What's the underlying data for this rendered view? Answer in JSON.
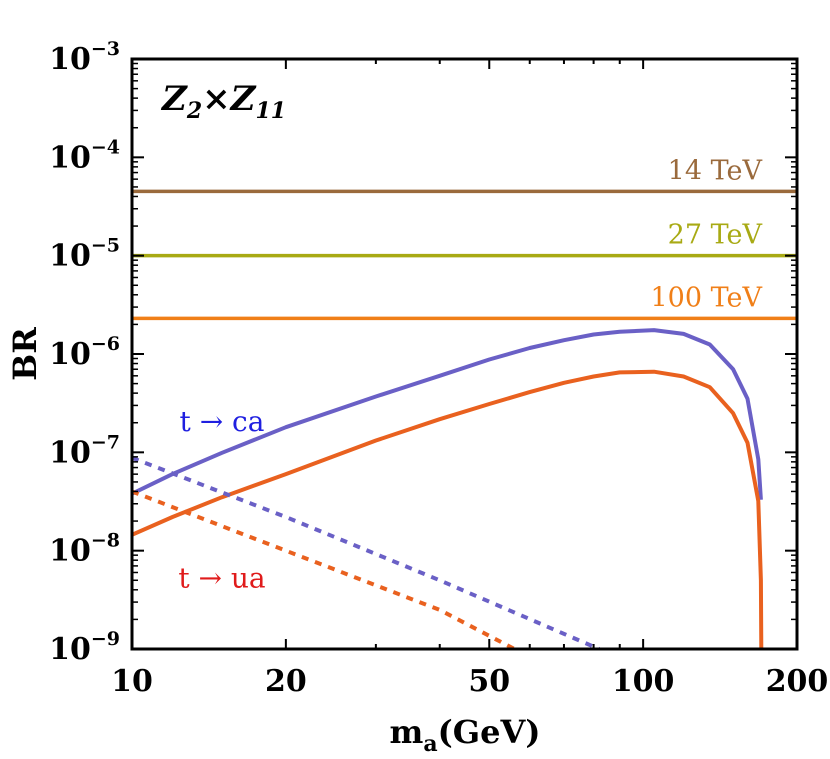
{
  "chart_data": {
    "type": "line",
    "xscale": "log",
    "yscale": "log",
    "xlim": [
      10,
      200
    ],
    "ylim": [
      1e-09,
      0.001
    ],
    "xlabel": "m",
    "xlabel_sub": "a",
    "xlabel_unit": "(GeV)",
    "ylabel": "BR",
    "panel_label": {
      "z2": "Z",
      "z2_sub": "2",
      "times": "×",
      "z11": "Z",
      "z11_sub": "11"
    },
    "x_ticks": [
      {
        "value": 10,
        "label": "10"
      },
      {
        "value": 20,
        "label": "20"
      },
      {
        "value": 50,
        "label": "50"
      },
      {
        "value": 100,
        "label": "100"
      },
      {
        "value": 200,
        "label": "200"
      }
    ],
    "y_ticks": [
      {
        "value": 1e-09,
        "base": "10",
        "exp": "−9"
      },
      {
        "value": 1e-08,
        "base": "10",
        "exp": "−8"
      },
      {
        "value": 1e-07,
        "base": "10",
        "exp": "−7"
      },
      {
        "value": 1e-06,
        "base": "10",
        "exp": "−6"
      },
      {
        "value": 1e-05,
        "base": "10",
        "exp": "−5"
      },
      {
        "value": 0.0001,
        "base": "10",
        "exp": "−4"
      },
      {
        "value": 0.001,
        "base": "10",
        "exp": "−3"
      }
    ],
    "horizontal_lines": [
      {
        "name": "14 TeV",
        "label": "14 TeV",
        "value": 4.5e-05,
        "color": "#9a6a3c"
      },
      {
        "name": "27 TeV",
        "label": "27 TeV",
        "value": 1e-05,
        "color": "#a8aa14"
      },
      {
        "name": "100 TeV",
        "label": "100 TeV",
        "value": 2.3e-06,
        "color": "#f07f18"
      }
    ],
    "series": [
      {
        "name": "t → ca solid",
        "color": "#6a60c6",
        "dash": "solid",
        "x": [
          10,
          12,
          15,
          20,
          30,
          40,
          50,
          60,
          70,
          80,
          90,
          105,
          120,
          135,
          150,
          160,
          168,
          170
        ],
        "y": [
          3.8e-08,
          6e-08,
          9.9e-08,
          1.8e-07,
          3.7e-07,
          6e-07,
          8.8e-07,
          1.15e-06,
          1.38e-06,
          1.58e-06,
          1.68e-06,
          1.75e-06,
          1.6e-06,
          1.25e-06,
          7e-07,
          3.5e-07,
          8.5e-08,
          3.3e-08
        ]
      },
      {
        "name": "t → ua solid",
        "color": "#e9611f",
        "dash": "solid",
        "x": [
          10,
          12,
          15,
          20,
          30,
          40,
          50,
          60,
          70,
          80,
          90,
          105,
          120,
          135,
          150,
          160,
          168,
          170,
          170.3
        ],
        "y": [
          1.45e-08,
          2.2e-08,
          3.5e-08,
          6e-08,
          1.32e-07,
          2.17e-07,
          3.1e-07,
          4.1e-07,
          5.1e-07,
          5.9e-07,
          6.5e-07,
          6.6e-07,
          5.9e-07,
          4.6e-07,
          2.5e-07,
          1.25e-07,
          3.2e-08,
          5e-09,
          1e-09
        ]
      },
      {
        "name": "t → ca dashed",
        "color": "#6a60c6",
        "dash": "dashed",
        "x": [
          10,
          20,
          40,
          82
        ],
        "y": [
          8.8e-08,
          2.2e-08,
          5e-09,
          1e-09
        ]
      },
      {
        "name": "t → ua dashed",
        "color": "#e9611f",
        "dash": "dashed",
        "x": [
          10,
          20,
          40,
          56
        ],
        "y": [
          4e-08,
          1e-08,
          2.5e-09,
          1e-09
        ]
      }
    ],
    "curve_labels": [
      {
        "text": "t → ca",
        "color": "#1f1fe0",
        "x": 15,
        "y": 1.65e-07
      },
      {
        "text": "t → ua",
        "color": "#e01b1b",
        "x": 15,
        "y": 4.2e-09
      }
    ]
  }
}
